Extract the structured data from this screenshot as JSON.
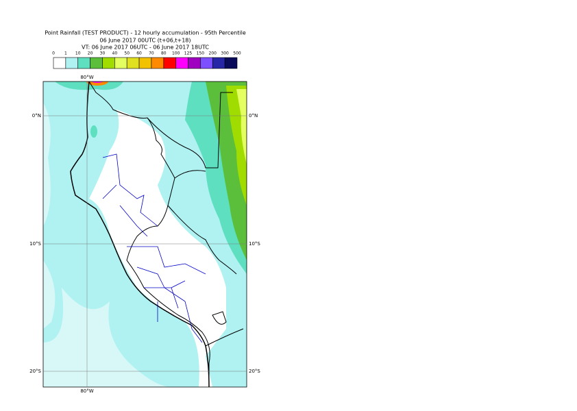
{
  "header": {
    "title_lines": [
      "Point Rainfall (TEST PRODUCT) - 12 hourly accumulation - 95th Percentile",
      "06 June 2017 00UTC (t+06,t+18)",
      "VT: 06 June 2017 06UTC - 06 June 2017 18UTC"
    ]
  },
  "legend": {
    "labels": [
      "0",
      "1",
      "10",
      "20",
      "30",
      "40",
      "50",
      "60",
      "70",
      "80",
      "100",
      "125",
      "150",
      "200",
      "300",
      "500"
    ],
    "colors": [
      "#ffffff",
      "#b0f2f2",
      "#5ee0c0",
      "#5cbf3c",
      "#a0dc00",
      "#e4ff60",
      "#e0e020",
      "#f2c200",
      "#ff8a00",
      "#ff0000",
      "#ff00ff",
      "#a000c0",
      "#7c50ff",
      "#2626a6",
      "#0a0a5a"
    ]
  },
  "map": {
    "lon_labels": [
      "80°W"
    ],
    "lat_labels": [
      "0°N",
      "10°S",
      "20°S"
    ]
  }
}
